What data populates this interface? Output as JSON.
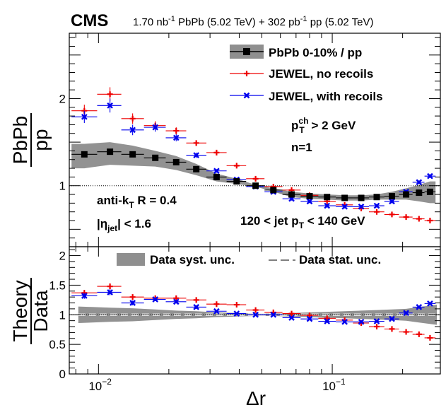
{
  "chart_data": {
    "type": "scatter",
    "header": {
      "experiment": "CMS",
      "lumi_pbpb": "1.70 nb",
      "lumi_pbpb_unit_sup": "-1",
      "lumi_pbpb_rest": " PbPb (5.02 TeV) + 302 pb",
      "lumi_pp_unit_sup": "-1",
      "lumi_pp_rest": " pp (5.02 TeV)"
    },
    "x_axis": {
      "label": "Δr",
      "scale": "log",
      "range": [
        0.0075,
        0.29
      ],
      "major_tick_labels": [
        {
          "value": 0.01,
          "base": "10",
          "exp": "−2"
        },
        {
          "value": 0.1,
          "base": "10",
          "exp": "−1"
        }
      ]
    },
    "top_panel": {
      "ylabel_num": "PbPb",
      "ylabel_den": "pp",
      "ylim": [
        0.3,
        2.75
      ],
      "yticks": [
        {
          "value": 1,
          "label": "1"
        },
        {
          "value": 2,
          "label": "2"
        }
      ],
      "reference_line": 1,
      "legend": [
        {
          "key": "data",
          "label": "PbPb 0-10% / pp"
        },
        {
          "key": "jewel_norec",
          "label": "JEWEL, no recoils"
        },
        {
          "key": "jewel_rec",
          "label": "JEWEL, with recoils"
        }
      ],
      "annotations": {
        "pt_cut_prefix": "p",
        "pt_cut_sup": "ch",
        "pt_cut_sub": "T",
        "pt_cut_suffix": " > 2 GeV",
        "n_label": "n=1",
        "algo_prefix": "anti-k",
        "algo_sub": "T",
        "algo_suffix": " R = 0.4",
        "eta_prefix": "|η",
        "eta_sub": "jet",
        "eta_suffix": "| < 1.6",
        "jet_pt_prefix": "120 < jet p",
        "jet_pt_sub": "T",
        "jet_pt_suffix": " < 140 GeV"
      },
      "series": [
        {
          "name": "PbPb 0-10% / pp",
          "color": "#000000",
          "marker": "square",
          "x": [
            0.0087,
            0.0112,
            0.014,
            0.0175,
            0.0215,
            0.0262,
            0.032,
            0.039,
            0.047,
            0.056,
            0.067,
            0.08,
            0.095,
            0.113,
            0.133,
            0.155,
            0.18,
            0.207,
            0.235,
            0.262
          ],
          "y": [
            1.36,
            1.39,
            1.36,
            1.32,
            1.27,
            1.19,
            1.1,
            1.05,
            1.0,
            0.95,
            0.9,
            0.88,
            0.87,
            0.86,
            0.86,
            0.87,
            0.88,
            0.9,
            0.92,
            0.93
          ],
          "syst_lo": [
            1.2,
            1.24,
            1.23,
            1.22,
            1.18,
            1.12,
            1.05,
            1.02,
            0.99,
            0.93,
            0.87,
            0.85,
            0.84,
            0.83,
            0.83,
            0.84,
            0.84,
            0.84,
            0.82,
            0.8
          ],
          "syst_hi": [
            1.48,
            1.5,
            1.46,
            1.4,
            1.34,
            1.25,
            1.14,
            1.08,
            1.01,
            0.97,
            0.93,
            0.91,
            0.9,
            0.89,
            0.89,
            0.9,
            0.93,
            0.97,
            1.01,
            1.05
          ]
        },
        {
          "name": "JEWEL, no recoils",
          "color": "#ee0000",
          "marker": "plus",
          "x": [
            0.0087,
            0.0112,
            0.014,
            0.0175,
            0.0215,
            0.0262,
            0.032,
            0.039,
            0.047,
            0.056,
            0.067,
            0.08,
            0.095,
            0.113,
            0.133,
            0.155,
            0.18,
            0.207,
            0.235,
            0.262
          ],
          "y": [
            1.86,
            2.05,
            1.77,
            1.69,
            1.63,
            1.49,
            1.38,
            1.23,
            1.08,
            0.99,
            0.95,
            0.89,
            0.82,
            0.78,
            0.74,
            0.7,
            0.67,
            0.64,
            0.62,
            0.6
          ],
          "err": [
            0.07,
            0.08,
            0.06,
            0.05,
            0.04,
            0.03,
            0.02,
            0.02,
            0.02,
            0.02,
            0.02,
            0.02,
            0.02,
            0.02,
            0.02,
            0.02,
            0.02,
            0.02,
            0.02,
            0.02
          ]
        },
        {
          "name": "JEWEL, with recoils",
          "color": "#0000ee",
          "marker": "cross",
          "x": [
            0.0087,
            0.0112,
            0.014,
            0.0175,
            0.0215,
            0.0262,
            0.032,
            0.039,
            0.047,
            0.056,
            0.067,
            0.08,
            0.095,
            0.113,
            0.133,
            0.155,
            0.18,
            0.207,
            0.235,
            0.262
          ],
          "y": [
            1.79,
            1.92,
            1.64,
            1.67,
            1.55,
            1.35,
            1.17,
            1.07,
            0.99,
            0.93,
            0.85,
            0.82,
            0.77,
            0.76,
            0.76,
            0.77,
            0.82,
            0.93,
            1.04,
            1.11
          ],
          "err": [
            0.07,
            0.08,
            0.06,
            0.05,
            0.04,
            0.03,
            0.02,
            0.02,
            0.02,
            0.02,
            0.02,
            0.02,
            0.02,
            0.02,
            0.02,
            0.02,
            0.02,
            0.02,
            0.02,
            0.02
          ]
        }
      ]
    },
    "bottom_panel": {
      "ylabel_num": "Theory",
      "ylabel_den": "Data",
      "ylim": [
        0,
        2.15
      ],
      "yticks": [
        {
          "value": 0,
          "label": "0"
        },
        {
          "value": 0.5,
          "label": "0.5"
        },
        {
          "value": 1,
          "label": "1"
        },
        {
          "value": 1.5,
          "label": "1.5"
        },
        {
          "value": 2,
          "label": "2"
        }
      ],
      "reference_line": 1,
      "legend": [
        {
          "key": "syst",
          "label": "Data syst. unc."
        },
        {
          "key": "stat",
          "label": "Data stat. unc."
        }
      ],
      "syst_band": {
        "x": [
          0.0082,
          0.0112,
          0.014,
          0.0175,
          0.0215,
          0.0262,
          0.032,
          0.039,
          0.047,
          0.056,
          0.067,
          0.08,
          0.095,
          0.113,
          0.133,
          0.155,
          0.18,
          0.207,
          0.235,
          0.28
        ],
        "lo": [
          0.86,
          0.88,
          0.89,
          0.91,
          0.93,
          0.94,
          0.96,
          0.97,
          0.98,
          0.98,
          0.97,
          0.96,
          0.95,
          0.94,
          0.93,
          0.92,
          0.91,
          0.9,
          0.87,
          0.83
        ],
        "hi": [
          1.14,
          1.12,
          1.11,
          1.09,
          1.07,
          1.06,
          1.04,
          1.03,
          1.02,
          1.02,
          1.03,
          1.04,
          1.05,
          1.06,
          1.07,
          1.08,
          1.09,
          1.1,
          1.13,
          1.17
        ]
      },
      "stat_lo": 0.985,
      "stat_hi": 1.015,
      "series": [
        {
          "name": "JEWEL, no recoils / data",
          "color": "#ee0000",
          "marker": "plus",
          "x": [
            0.0087,
            0.0112,
            0.014,
            0.0175,
            0.0215,
            0.0262,
            0.032,
            0.039,
            0.047,
            0.056,
            0.067,
            0.08,
            0.095,
            0.113,
            0.133,
            0.155,
            0.18,
            0.207,
            0.235,
            0.262
          ],
          "y": [
            1.37,
            1.48,
            1.3,
            1.28,
            1.28,
            1.25,
            1.18,
            1.17,
            1.08,
            1.04,
            1.02,
            0.99,
            0.94,
            0.91,
            0.86,
            0.8,
            0.76,
            0.71,
            0.67,
            0.61
          ],
          "err": [
            0.05,
            0.05,
            0.04,
            0.03,
            0.03,
            0.03,
            0.02,
            0.02,
            0.02,
            0.02,
            0.02,
            0.02,
            0.02,
            0.02,
            0.02,
            0.02,
            0.02,
            0.02,
            0.02,
            0.02
          ]
        },
        {
          "name": "JEWEL, with recoils / data",
          "color": "#0000ee",
          "marker": "cross",
          "x": [
            0.0087,
            0.0112,
            0.014,
            0.0175,
            0.0215,
            0.0262,
            0.032,
            0.039,
            0.047,
            0.056,
            0.067,
            0.08,
            0.095,
            0.113,
            0.133,
            0.155,
            0.18,
            0.207,
            0.235,
            0.262
          ],
          "y": [
            1.32,
            1.38,
            1.2,
            1.26,
            1.22,
            1.13,
            1.06,
            1.02,
            1.0,
            1.0,
            0.95,
            0.93,
            0.89,
            0.88,
            0.88,
            0.89,
            0.93,
            1.03,
            1.13,
            1.19
          ],
          "err": [
            0.05,
            0.05,
            0.04,
            0.03,
            0.03,
            0.03,
            0.02,
            0.02,
            0.02,
            0.02,
            0.02,
            0.02,
            0.02,
            0.02,
            0.02,
            0.02,
            0.02,
            0.02,
            0.02,
            0.02
          ]
        }
      ]
    }
  }
}
